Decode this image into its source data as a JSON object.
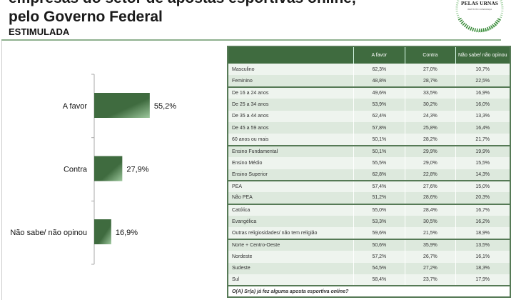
{
  "header": {
    "title_line1": "empresas do setor de apostas esportivas online,",
    "title_line2": "pelo Governo Federal",
    "subtitle": "ESTIMULADA",
    "logo_text": "PELAS URNAS",
    "logo_subtext": "INSTITUTO CONFIANÇA"
  },
  "chart_data": {
    "type": "bar",
    "orientation": "horizontal",
    "categories": [
      "A favor",
      "Contra",
      "Não sabe/ não opinou"
    ],
    "values": [
      55.2,
      27.9,
      16.9
    ],
    "data_labels": [
      "55,2%",
      "27,9%",
      "16,9%"
    ],
    "color": "#3f6b3f",
    "grid": false
  },
  "table": {
    "columns": [
      "",
      "A favor",
      "Contra",
      "Não sabe/ não opinou"
    ],
    "groups": [
      [
        [
          "Masculino",
          "62,3%",
          "27,0%",
          "10,7%"
        ],
        [
          "Feminino",
          "48,8%",
          "28,7%",
          "22,5%"
        ]
      ],
      [
        [
          "De 16 a 24 anos",
          "49,6%",
          "33,5%",
          "16,9%"
        ],
        [
          "De 25 a 34 anos",
          "53,9%",
          "30,2%",
          "16,0%"
        ],
        [
          "De 35 a 44 anos",
          "62,4%",
          "24,3%",
          "13,3%"
        ],
        [
          "De 45 a 59 anos",
          "57,8%",
          "25,8%",
          "16,4%"
        ],
        [
          "60 anos ou mais",
          "50,1%",
          "28,2%",
          "21,7%"
        ]
      ],
      [
        [
          "Ensino Fundamental",
          "50,1%",
          "29,9%",
          "19,9%"
        ],
        [
          "Ensino Médio",
          "55,5%",
          "29,0%",
          "15,5%"
        ],
        [
          "Ensino Superior",
          "62,8%",
          "22,8%",
          "14,3%"
        ]
      ],
      [
        [
          "PEA",
          "57,4%",
          "27,6%",
          "15,0%"
        ],
        [
          "Não PEA",
          "51,2%",
          "28,6%",
          "20,3%"
        ]
      ],
      [
        [
          "Católica",
          "55,0%",
          "28,4%",
          "16,7%"
        ],
        [
          "Evangélica",
          "53,3%",
          "30,5%",
          "16,2%"
        ],
        [
          "Outras religiosidades/ não tem religião",
          "59,6%",
          "21,5%",
          "18,9%"
        ]
      ],
      [
        [
          "Norte + Centro-Oeste",
          "50,6%",
          "35,9%",
          "13,5%"
        ],
        [
          "Nordeste",
          "57,2%",
          "26,7%",
          "16,1%"
        ],
        [
          "Sudeste",
          "54,5%",
          "27,2%",
          "18,3%"
        ],
        [
          "Sul",
          "58,4%",
          "23,7%",
          "17,9%"
        ]
      ]
    ],
    "question": "O(A) Sr(a) já fez alguma aposta esportiva online?"
  }
}
